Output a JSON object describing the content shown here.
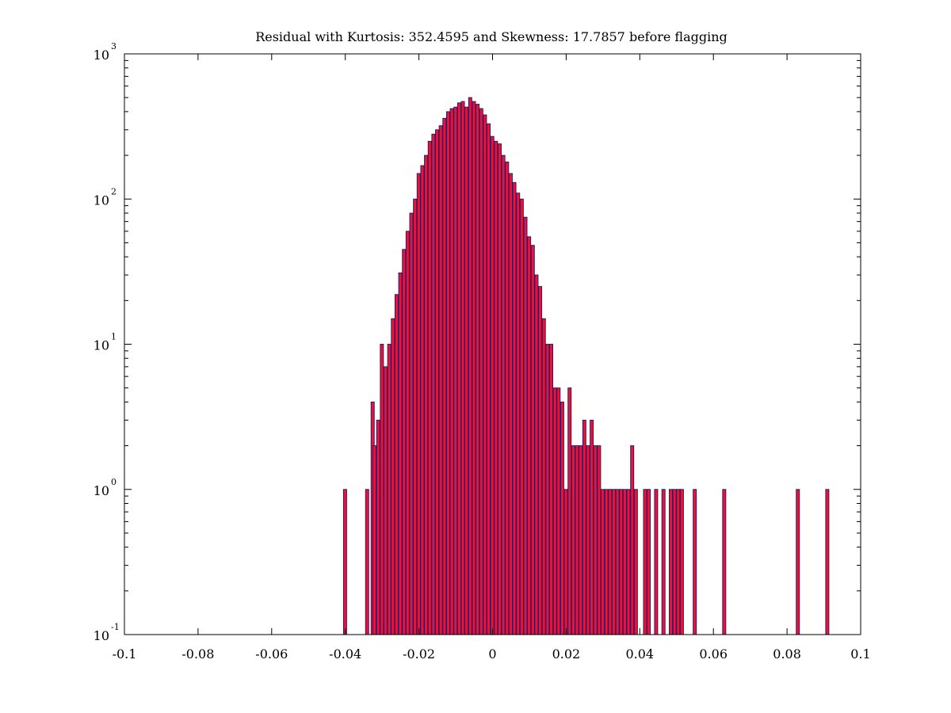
{
  "chart_data": {
    "type": "bar",
    "title": "Residual with Kurtosis: 352.4595 and Skewness: 17.7857 before flagging",
    "xlabel": "",
    "ylabel": "",
    "xlim": [
      -0.1,
      0.1
    ],
    "ylim": [
      0.1,
      1000
    ],
    "y_scale": "log",
    "x_ticks": [
      -0.1,
      -0.08,
      -0.06,
      -0.04,
      -0.02,
      0,
      0.02,
      0.04,
      0.06,
      0.08,
      0.1
    ],
    "x_tick_labels": [
      "-0.1",
      "-0.08",
      "-0.06",
      "-0.04",
      "-0.02",
      "0",
      "0.02",
      "0.04",
      "0.06",
      "0.08",
      "0.1"
    ],
    "y_ticks": [
      {
        "value": 0.1,
        "base": "10",
        "exp": "-1"
      },
      {
        "value": 1,
        "base": "10",
        "exp": "0"
      },
      {
        "value": 10,
        "base": "10",
        "exp": "1"
      },
      {
        "value": 100,
        "base": "10",
        "exp": "2"
      },
      {
        "value": 1000,
        "base": "10",
        "exp": "3"
      }
    ],
    "grid": false,
    "bar_width": 0.001,
    "colors": {
      "fill": "#ee1133",
      "edge": "#1a1a70",
      "axes": "#000000"
    },
    "series": [
      {
        "x": [
          -0.04,
          -0.034,
          -0.0325,
          -0.032,
          -0.031,
          -0.03,
          -0.029,
          -0.028,
          -0.027,
          -0.026,
          -0.025,
          -0.024,
          -0.023,
          -0.022,
          -0.021,
          -0.02,
          -0.019,
          -0.018,
          -0.017,
          -0.016,
          -0.015,
          -0.014,
          -0.013,
          -0.012,
          -0.011,
          -0.01,
          -0.009,
          -0.008,
          -0.007,
          -0.006,
          -0.005,
          -0.004,
          -0.003,
          -0.002,
          -0.001,
          0.0,
          0.001,
          0.002,
          0.003,
          0.004,
          0.005,
          0.006,
          0.007,
          0.008,
          0.009,
          0.01,
          0.011,
          0.012,
          0.013,
          0.014,
          0.015,
          0.016,
          0.017,
          0.018,
          0.019,
          0.02,
          0.021,
          0.022,
          0.023,
          0.024,
          0.025,
          0.026,
          0.027,
          0.028,
          0.029,
          0.03,
          0.031,
          0.032,
          0.033,
          0.034,
          0.035,
          0.036,
          0.037,
          0.038,
          0.039,
          0.0415,
          0.0425,
          0.0445,
          0.0465,
          0.0485,
          0.0495,
          0.0505,
          0.0515,
          0.055,
          0.063,
          0.083,
          0.091
        ],
        "values": [
          1,
          1,
          4,
          2,
          3,
          10,
          7,
          10,
          15,
          22,
          31,
          45,
          60,
          80,
          100,
          150,
          170,
          200,
          250,
          280,
          300,
          320,
          360,
          400,
          420,
          430,
          460,
          470,
          430,
          500,
          470,
          450,
          420,
          380,
          330,
          270,
          250,
          240,
          200,
          180,
          150,
          130,
          110,
          100,
          75,
          55,
          48,
          30,
          25,
          15,
          10,
          10,
          5,
          5,
          4,
          1,
          5,
          2,
          2,
          2,
          3,
          2,
          3,
          2,
          2,
          1,
          1,
          1,
          1,
          1,
          1,
          1,
          1,
          2,
          1,
          1,
          1,
          1,
          1,
          1,
          1,
          1,
          1,
          1,
          1,
          1,
          1
        ]
      }
    ]
  }
}
